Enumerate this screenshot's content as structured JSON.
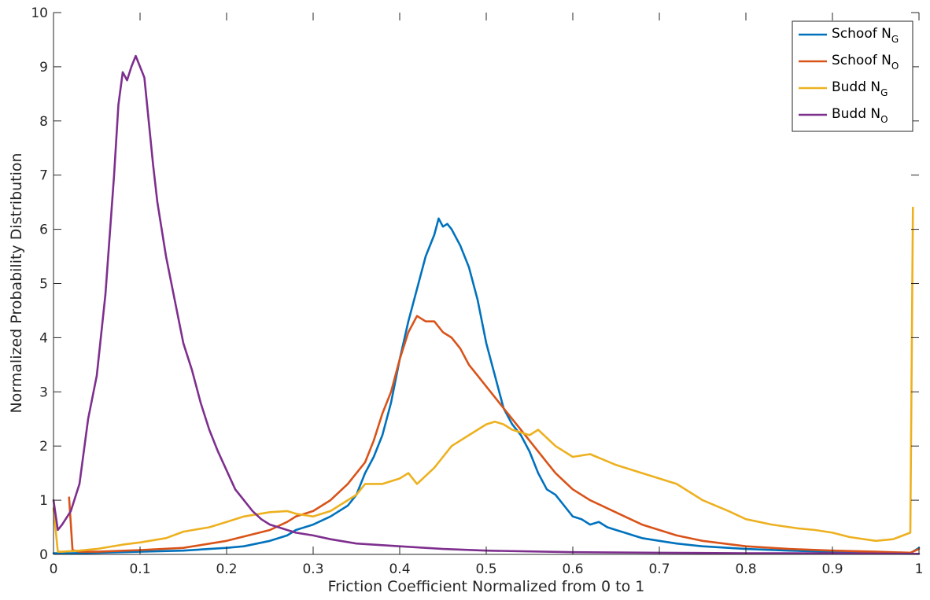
{
  "chart_data": {
    "type": "line",
    "title": "",
    "xlabel": "Friction Coefficient Normalized from 0 to 1",
    "ylabel": "Normalized Probability Distribution",
    "xlim": [
      0,
      1
    ],
    "ylim": [
      0,
      10
    ],
    "xticks": [
      0,
      0.1,
      0.2,
      0.3,
      0.4,
      0.5,
      0.6,
      0.7,
      0.8,
      0.9,
      1
    ],
    "xtick_labels": [
      "0",
      "0.1",
      "0.2",
      "0.3",
      "0.4",
      "0.5",
      "0.6",
      "0.7",
      "0.8",
      "0.9",
      "1"
    ],
    "yticks": [
      0,
      1,
      2,
      3,
      4,
      5,
      6,
      7,
      8,
      9,
      10
    ],
    "ytick_labels": [
      "0",
      "1",
      "2",
      "3",
      "4",
      "5",
      "6",
      "7",
      "8",
      "9",
      "10"
    ],
    "grid": false,
    "legend_position": "top-right",
    "series": [
      {
        "name": "Schoof N",
        "subscript": "G",
        "color": "#0072BD",
        "x": [
          0,
          0.02,
          0.05,
          0.1,
          0.15,
          0.18,
          0.2,
          0.22,
          0.25,
          0.27,
          0.28,
          0.3,
          0.32,
          0.34,
          0.35,
          0.36,
          0.37,
          0.38,
          0.39,
          0.4,
          0.41,
          0.42,
          0.43,
          0.44,
          0.445,
          0.45,
          0.455,
          0.46,
          0.47,
          0.48,
          0.49,
          0.5,
          0.51,
          0.52,
          0.53,
          0.54,
          0.55,
          0.56,
          0.57,
          0.58,
          0.59,
          0.6,
          0.61,
          0.62,
          0.63,
          0.64,
          0.65,
          0.66,
          0.67,
          0.68,
          0.7,
          0.72,
          0.75,
          0.8,
          0.85,
          0.9,
          0.95,
          0.99,
          1.0
        ],
        "y": [
          0.02,
          0.02,
          0.03,
          0.05,
          0.07,
          0.1,
          0.12,
          0.15,
          0.25,
          0.35,
          0.45,
          0.55,
          0.7,
          0.9,
          1.1,
          1.5,
          1.8,
          2.2,
          2.8,
          3.6,
          4.3,
          4.9,
          5.5,
          5.9,
          6.2,
          6.05,
          6.1,
          6.0,
          5.7,
          5.3,
          4.7,
          3.9,
          3.3,
          2.7,
          2.4,
          2.2,
          1.9,
          1.5,
          1.2,
          1.1,
          0.9,
          0.7,
          0.65,
          0.55,
          0.6,
          0.5,
          0.45,
          0.4,
          0.35,
          0.3,
          0.25,
          0.2,
          0.15,
          0.1,
          0.07,
          0.05,
          0.03,
          0.02,
          0.12
        ]
      },
      {
        "name": "Schoof N",
        "subscript": "O",
        "color": "#D95319",
        "x": [
          0.018,
          0.022,
          0.03,
          0.05,
          0.1,
          0.15,
          0.2,
          0.25,
          0.27,
          0.28,
          0.3,
          0.32,
          0.34,
          0.36,
          0.37,
          0.38,
          0.39,
          0.4,
          0.41,
          0.42,
          0.43,
          0.44,
          0.45,
          0.46,
          0.47,
          0.48,
          0.49,
          0.5,
          0.51,
          0.52,
          0.53,
          0.54,
          0.55,
          0.56,
          0.57,
          0.58,
          0.59,
          0.6,
          0.62,
          0.64,
          0.66,
          0.68,
          0.7,
          0.72,
          0.75,
          0.8,
          0.85,
          0.9,
          0.95,
          0.99,
          1.0
        ],
        "y": [
          1.05,
          0.08,
          0.05,
          0.05,
          0.08,
          0.12,
          0.25,
          0.45,
          0.6,
          0.7,
          0.8,
          1.0,
          1.3,
          1.7,
          2.1,
          2.6,
          3.0,
          3.6,
          4.1,
          4.4,
          4.3,
          4.3,
          4.1,
          4.0,
          3.8,
          3.5,
          3.3,
          3.1,
          2.9,
          2.7,
          2.5,
          2.3,
          2.1,
          1.9,
          1.7,
          1.5,
          1.35,
          1.2,
          1.0,
          0.85,
          0.7,
          0.55,
          0.45,
          0.35,
          0.25,
          0.15,
          0.1,
          0.07,
          0.05,
          0.03,
          0.1
        ]
      },
      {
        "name": "Budd N",
        "subscript": "G",
        "color": "#EDB120",
        "x": [
          0,
          0.005,
          0.01,
          0.03,
          0.05,
          0.08,
          0.1,
          0.13,
          0.15,
          0.18,
          0.2,
          0.22,
          0.25,
          0.27,
          0.28,
          0.3,
          0.32,
          0.34,
          0.35,
          0.36,
          0.38,
          0.4,
          0.41,
          0.42,
          0.44,
          0.45,
          0.46,
          0.48,
          0.5,
          0.51,
          0.52,
          0.53,
          0.55,
          0.56,
          0.58,
          0.6,
          0.62,
          0.65,
          0.68,
          0.7,
          0.72,
          0.75,
          0.78,
          0.8,
          0.83,
          0.86,
          0.88,
          0.9,
          0.92,
          0.95,
          0.97,
          0.99,
          0.993
        ],
        "y": [
          0.85,
          0.05,
          0.05,
          0.07,
          0.1,
          0.18,
          0.22,
          0.3,
          0.42,
          0.5,
          0.6,
          0.7,
          0.78,
          0.8,
          0.75,
          0.7,
          0.8,
          1.0,
          1.1,
          1.3,
          1.3,
          1.4,
          1.5,
          1.3,
          1.6,
          1.8,
          2.0,
          2.2,
          2.4,
          2.45,
          2.4,
          2.3,
          2.2,
          2.3,
          2.0,
          1.8,
          1.85,
          1.65,
          1.5,
          1.4,
          1.3,
          1.0,
          0.8,
          0.65,
          0.55,
          0.48,
          0.45,
          0.4,
          0.32,
          0.25,
          0.28,
          0.4,
          6.4
        ]
      },
      {
        "name": "Budd N",
        "subscript": "O",
        "color": "#7E2F8E",
        "x": [
          0,
          0.005,
          0.01,
          0.02,
          0.03,
          0.04,
          0.05,
          0.06,
          0.07,
          0.075,
          0.08,
          0.085,
          0.09,
          0.095,
          0.1,
          0.105,
          0.11,
          0.115,
          0.12,
          0.13,
          0.14,
          0.15,
          0.16,
          0.17,
          0.18,
          0.19,
          0.2,
          0.21,
          0.22,
          0.23,
          0.24,
          0.25,
          0.26,
          0.27,
          0.28,
          0.3,
          0.32,
          0.35,
          0.4,
          0.45,
          0.5,
          0.6,
          0.7,
          0.8,
          0.9,
          1.0
        ],
        "y": [
          1.0,
          0.45,
          0.55,
          0.8,
          1.3,
          2.5,
          3.3,
          4.8,
          7.0,
          8.3,
          8.9,
          8.75,
          9.0,
          9.2,
          9.0,
          8.8,
          8.0,
          7.2,
          6.5,
          5.5,
          4.7,
          3.9,
          3.4,
          2.8,
          2.3,
          1.9,
          1.55,
          1.2,
          1.0,
          0.8,
          0.65,
          0.55,
          0.5,
          0.45,
          0.4,
          0.35,
          0.28,
          0.2,
          0.15,
          0.1,
          0.07,
          0.04,
          0.03,
          0.02,
          0.02,
          0.01
        ]
      }
    ]
  }
}
